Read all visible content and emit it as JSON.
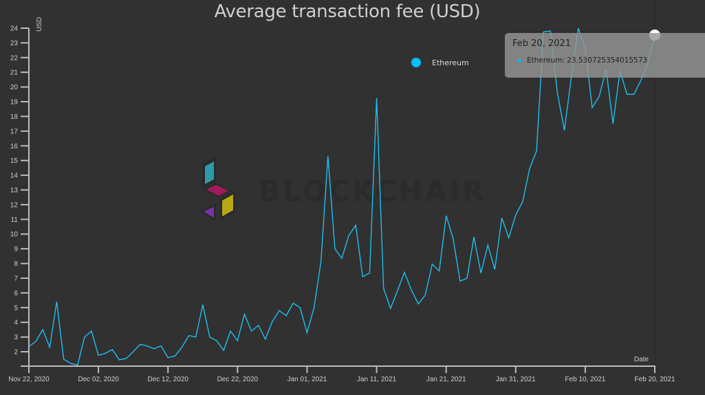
{
  "title": "Average transaction fee (USD)",
  "legend": {
    "items": [
      {
        "label": "Ethereum",
        "color": "#00bfff"
      }
    ]
  },
  "tooltip": {
    "date": "Feb 20, 2021",
    "series": "Ethereum",
    "value": "23.530725354015573",
    "text": "Ethereum: 23.530725354015573",
    "color": "#00bfff"
  },
  "watermark": {
    "text": "BLOCKCHAIR"
  },
  "axes": {
    "y_label": "USD",
    "x_label": "Date",
    "y_ticks": [
      "2",
      "3",
      "4",
      "5",
      "6",
      "7",
      "8",
      "9",
      "10",
      "11",
      "12",
      "13",
      "14",
      "15",
      "16",
      "17",
      "18",
      "19",
      "20",
      "21",
      "22",
      "23",
      "24"
    ],
    "x_ticks": [
      "Nov 22, 2020",
      "Dec 02, 2020",
      "Dec 12, 2020",
      "Dec 22, 2020",
      "Jan 01, 2021",
      "Jan 11, 2021",
      "Jan 21, 2021",
      "Jan 31, 2021",
      "Feb 10, 2021",
      "Feb 20, 2021"
    ]
  },
  "colors": {
    "background": "#313131",
    "line": "#1ec0f0",
    "axis": "#bdbdbd",
    "text": "#cfcfcf"
  },
  "chart_data": {
    "type": "line",
    "title": "Average transaction fee (USD)",
    "xlabel": "Date",
    "ylabel": "USD",
    "ylim": [
      1,
      24
    ],
    "x_start": "2020-11-22",
    "x_end": "2021-02-20",
    "grid": false,
    "legend_position": "top-right",
    "x_tick_labels": [
      "Nov 22, 2020",
      "Dec 02, 2020",
      "Dec 12, 2020",
      "Dec 22, 2020",
      "Jan 01, 2021",
      "Jan 11, 2021",
      "Jan 21, 2021",
      "Jan 31, 2021",
      "Feb 10, 2021",
      "Feb 20, 2021"
    ],
    "y_tick_labels": [
      2,
      3,
      4,
      5,
      6,
      7,
      8,
      9,
      10,
      11,
      12,
      13,
      14,
      15,
      16,
      17,
      18,
      19,
      20,
      21,
      22,
      23,
      24
    ],
    "series": [
      {
        "name": "Ethereum",
        "color": "#00bfff",
        "x": [
          "2020-11-22",
          "2020-11-23",
          "2020-11-24",
          "2020-11-25",
          "2020-11-26",
          "2020-11-27",
          "2020-11-28",
          "2020-11-29",
          "2020-11-30",
          "2020-12-01",
          "2020-12-02",
          "2020-12-03",
          "2020-12-04",
          "2020-12-05",
          "2020-12-06",
          "2020-12-07",
          "2020-12-08",
          "2020-12-09",
          "2020-12-10",
          "2020-12-11",
          "2020-12-12",
          "2020-12-13",
          "2020-12-14",
          "2020-12-15",
          "2020-12-16",
          "2020-12-17",
          "2020-12-18",
          "2020-12-19",
          "2020-12-20",
          "2020-12-21",
          "2020-12-22",
          "2020-12-23",
          "2020-12-24",
          "2020-12-25",
          "2020-12-26",
          "2020-12-27",
          "2020-12-28",
          "2020-12-29",
          "2020-12-30",
          "2020-12-31",
          "2021-01-01",
          "2021-01-02",
          "2021-01-03",
          "2021-01-04",
          "2021-01-05",
          "2021-01-06",
          "2021-01-07",
          "2021-01-08",
          "2021-01-09",
          "2021-01-10",
          "2021-01-11",
          "2021-01-12",
          "2021-01-13",
          "2021-01-14",
          "2021-01-15",
          "2021-01-16",
          "2021-01-17",
          "2021-01-18",
          "2021-01-19",
          "2021-01-20",
          "2021-01-21",
          "2021-01-22",
          "2021-01-23",
          "2021-01-24",
          "2021-01-25",
          "2021-01-26",
          "2021-01-27",
          "2021-01-28",
          "2021-01-29",
          "2021-01-30",
          "2021-01-31",
          "2021-02-01",
          "2021-02-02",
          "2021-02-03",
          "2021-02-04",
          "2021-02-05",
          "2021-02-06",
          "2021-02-07",
          "2021-02-08",
          "2021-02-09",
          "2021-02-10",
          "2021-02-11",
          "2021-02-12",
          "2021-02-13",
          "2021-02-14",
          "2021-02-15",
          "2021-02-16",
          "2021-02-17",
          "2021-02-18",
          "2021-02-19",
          "2021-02-20"
        ],
        "values": [
          2.35,
          2.7,
          3.5,
          2.3,
          5.4,
          1.5,
          1.2,
          1.1,
          3.0,
          3.4,
          1.75,
          1.9,
          2.15,
          1.45,
          1.55,
          2.0,
          2.5,
          2.4,
          2.2,
          2.4,
          1.6,
          1.7,
          2.3,
          3.1,
          3.0,
          5.2,
          3.0,
          2.75,
          2.1,
          3.4,
          2.75,
          4.55,
          3.4,
          3.8,
          2.85,
          4.05,
          4.8,
          4.45,
          5.3,
          5.0,
          3.3,
          5.0,
          8.15,
          15.3,
          9.0,
          8.35,
          9.9,
          10.6,
          7.1,
          7.35,
          19.25,
          6.3,
          4.95,
          6.15,
          7.4,
          6.2,
          5.25,
          5.85,
          7.95,
          7.5,
          11.25,
          9.7,
          6.8,
          7.0,
          9.8,
          7.35,
          9.25,
          7.6,
          11.1,
          9.75,
          11.3,
          12.2,
          14.45,
          15.65,
          23.75,
          23.8,
          19.6,
          17.05,
          20.7,
          24.0,
          22.6,
          18.6,
          19.35,
          21.2,
          17.5,
          21.1,
          19.5,
          19.5,
          20.45,
          21.65,
          23.53
        ]
      }
    ],
    "annotations": [
      {
        "type": "tooltip",
        "x": "2021-02-20",
        "text": "Ethereum: 23.530725354015573"
      }
    ]
  }
}
